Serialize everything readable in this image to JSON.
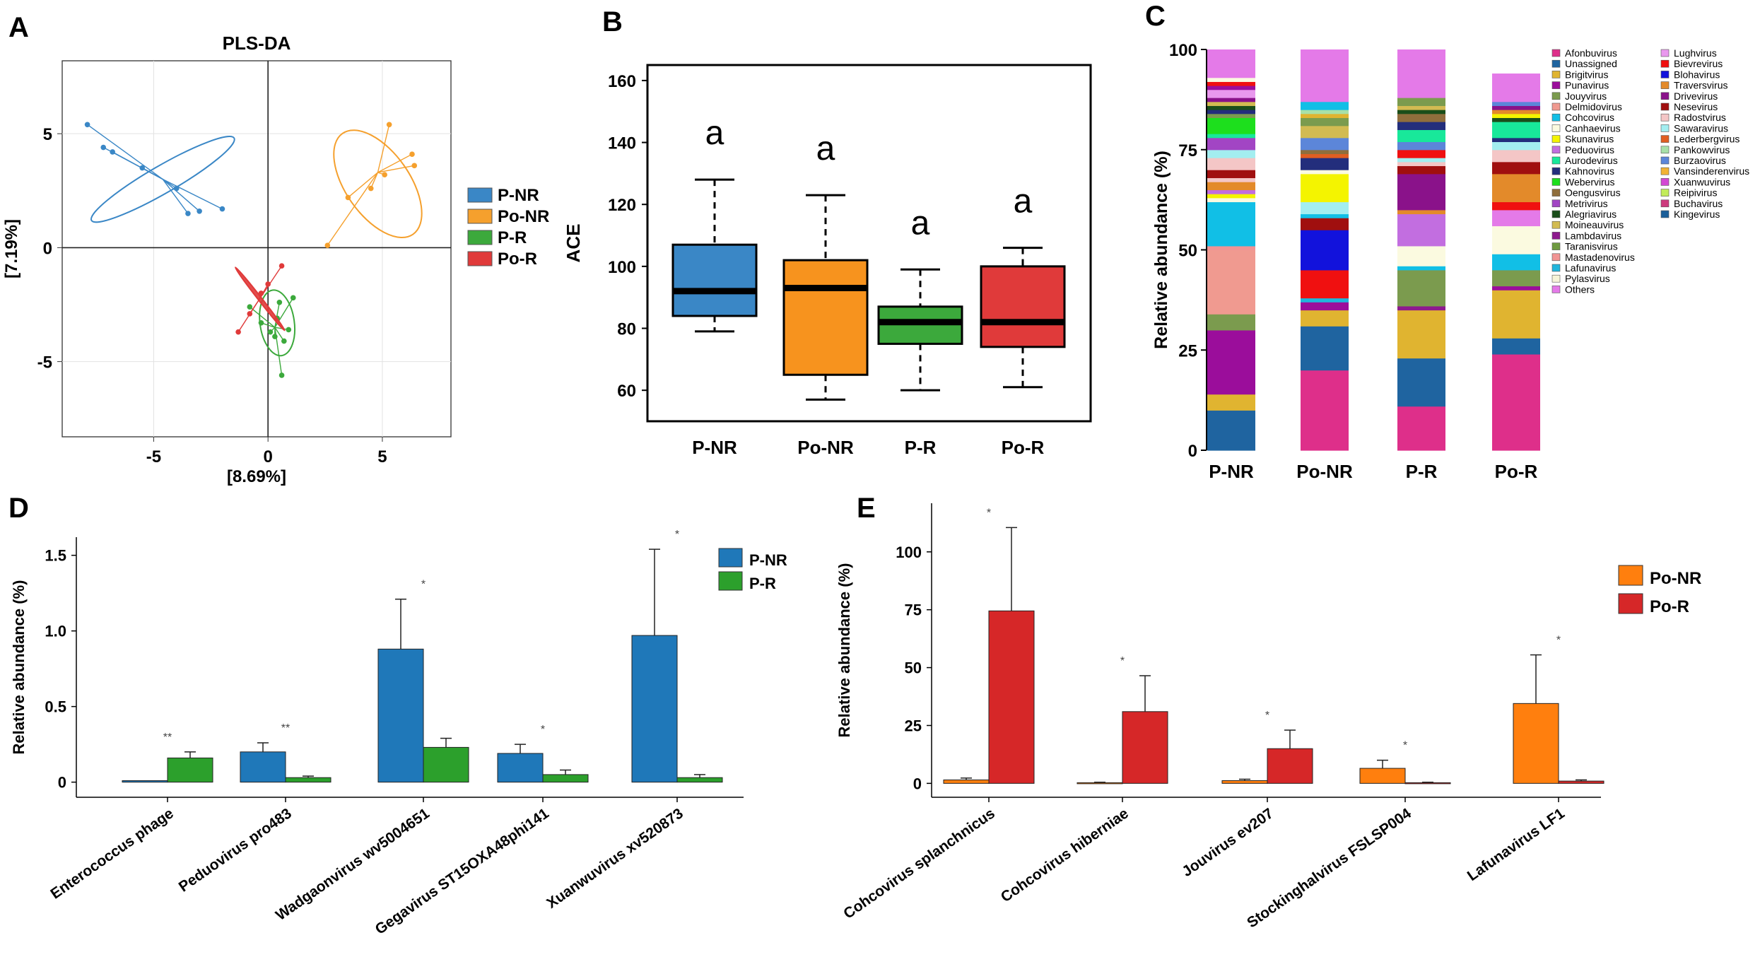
{
  "panel_letters": {
    "A": "A",
    "B": "B",
    "C": "C",
    "D": "D",
    "E": "E"
  },
  "chart_data": [
    {
      "panel": "A",
      "type": "scatter",
      "title": "PLS-DA",
      "xlabel": "[8.69%]",
      "ylabel": "[7.19%]",
      "xlim": [
        -9,
        8
      ],
      "ylim": [
        -8.3,
        8.2
      ],
      "xticks": [
        {
          "value": -5,
          "label": "-5"
        },
        {
          "value": 0,
          "label": "0"
        },
        {
          "value": 5,
          "label": "5"
        }
      ],
      "yticks": [
        {
          "value": -5,
          "label": "-5"
        },
        {
          "value": 0,
          "label": "0"
        },
        {
          "value": 5,
          "label": "5"
        }
      ],
      "legend": [
        "P-NR",
        "Po-NR",
        "P-R",
        "Po-R"
      ],
      "series": [
        {
          "name": "P-NR",
          "color": "#3a87c6",
          "points": [
            [
              -7.9,
              5.4
            ],
            [
              -7.2,
              4.4
            ],
            [
              -6.8,
              4.2
            ],
            [
              -5.5,
              3.5
            ],
            [
              -4,
              2.6
            ],
            [
              -3.5,
              1.5
            ],
            [
              -3,
              1.6
            ],
            [
              -2,
              1.7
            ]
          ],
          "centroid": [
            -4.6,
            3.0
          ],
          "ellipse": {
            "cx": -4.6,
            "cy": 3.0,
            "rx": 3.6,
            "ry": 0.6,
            "angle_deg": -30
          }
        },
        {
          "name": "Po-NR",
          "color": "#f5a02d",
          "points": [
            [
              2.6,
              0.1
            ],
            [
              3.5,
              2.2
            ],
            [
              5.1,
              3.2
            ],
            [
              5.3,
              5.4
            ],
            [
              6.3,
              4.1
            ],
            [
              6.4,
              3.6
            ],
            [
              4.5,
              2.6
            ]
          ],
          "centroid": [
            4.8,
            3.3
          ],
          "ellipse": {
            "cx": 4.8,
            "cy": 2.8,
            "rx": 1.4,
            "ry": 2.7,
            "angle_deg": -35
          }
        },
        {
          "name": "P-R",
          "color": "#3ca93c",
          "points": [
            [
              -0.8,
              -2.6
            ],
            [
              -0.3,
              -3.3
            ],
            [
              0.1,
              -3.7
            ],
            [
              0.4,
              -3.1
            ],
            [
              0.5,
              -2.4
            ],
            [
              0.6,
              -5.6
            ],
            [
              0.9,
              -3.6
            ],
            [
              1.1,
              -2.2
            ],
            [
              0.7,
              -4.1
            ],
            [
              0.3,
              -3.9
            ]
          ],
          "centroid": [
            0.3,
            -3.5
          ],
          "ellipse": {
            "cx": 0.4,
            "cy": -3.3,
            "rx": 0.75,
            "ry": 1.45,
            "angle_deg": -8
          }
        },
        {
          "name": "Po-R",
          "color": "#e03a3a",
          "points": [
            [
              -1.3,
              -3.7
            ],
            [
              -0.8,
              -2.9
            ],
            [
              -0.3,
              -2.0
            ],
            [
              0.0,
              -1.6
            ],
            [
              0.6,
              -0.8
            ]
          ],
          "centroid": [
            -0.4,
            -2.3
          ],
          "ellipse": {
            "cx": -0.35,
            "cy": -2.25,
            "rx": 1.75,
            "ry": 0.07,
            "angle_deg": 52
          }
        }
      ]
    },
    {
      "panel": "B",
      "type": "box",
      "ylabel": "ACE",
      "ylim": [
        50,
        165
      ],
      "yticks": [
        60,
        80,
        100,
        120,
        140,
        160
      ],
      "categories": [
        "P-NR",
        "Po-NR",
        "P-R",
        "Po-R"
      ],
      "significance": [
        "a",
        "a",
        "a",
        "a"
      ],
      "boxes": [
        {
          "name": "P-NR",
          "color": "#3a87c6",
          "whisker_low": 79,
          "q1": 84,
          "median": 92,
          "q3": 107,
          "whisker_high": 128
        },
        {
          "name": "Po-NR",
          "color": "#f7931e",
          "whisker_low": 57,
          "q1": 65,
          "median": 93,
          "q3": 102,
          "whisker_high": 123
        },
        {
          "name": "P-R",
          "color": "#3ca93c",
          "whisker_low": 60,
          "q1": 75,
          "median": 82,
          "q3": 87,
          "whisker_high": 99
        },
        {
          "name": "Po-R",
          "color": "#e03a3a",
          "whisker_low": 61,
          "q1": 74,
          "median": 82,
          "q3": 100,
          "whisker_high": 106
        }
      ]
    },
    {
      "panel": "C",
      "type": "stacked-bar",
      "ylabel": "Relative abundance  (%)",
      "ylim": [
        0,
        100
      ],
      "yticks": [
        0,
        25,
        50,
        75,
        100
      ],
      "categories": [
        "P-NR",
        "Po-NR",
        "P-R",
        "Po-R"
      ],
      "legend": [
        {
          "name": "Afonbuvirus",
          "color": "#de2f8a"
        },
        {
          "name": "Unassigned",
          "color": "#1f64a0"
        },
        {
          "name": "Brigitvirus",
          "color": "#e0b430"
        },
        {
          "name": "Punavirus",
          "color": "#9b0d9b"
        },
        {
          "name": "Jouyvirus",
          "color": "#7b9b4e"
        },
        {
          "name": "Delmidovirus",
          "color": "#f09a90"
        },
        {
          "name": "Cohcovirus",
          "color": "#11bfe6"
        },
        {
          "name": "Canhaevirus",
          "color": "#fbfae0"
        },
        {
          "name": "Skunavirus",
          "color": "#f4f400"
        },
        {
          "name": "Peduovirus",
          "color": "#c26ee0"
        },
        {
          "name": "Aurodevirus",
          "color": "#18e89a"
        },
        {
          "name": "Kahnovirus",
          "color": "#232e7c"
        },
        {
          "name": "Webervirus",
          "color": "#1ddf1d"
        },
        {
          "name": "Oengusvirus",
          "color": "#8f6e3c"
        },
        {
          "name": "Metrivirus",
          "color": "#a245c4"
        },
        {
          "name": "Alegriavirus",
          "color": "#1a4e1a"
        },
        {
          "name": "Moineauvirus",
          "color": "#d2bb52"
        },
        {
          "name": "Lambdavirus",
          "color": "#8e1a8e"
        },
        {
          "name": "Taranisvirus",
          "color": "#6e9a40"
        },
        {
          "name": "Mastadenovirus",
          "color": "#f19494"
        },
        {
          "name": "Lafunavirus",
          "color": "#21b5dc"
        },
        {
          "name": "Pylasvirus",
          "color": "#f6f4d8"
        },
        {
          "name": "Others",
          "color": "#e47ae8"
        },
        {
          "name": "Lughvirus",
          "color": "#e998ee"
        },
        {
          "name": "Bievrevirus",
          "color": "#f01010"
        },
        {
          "name": "Blohavirus",
          "color": "#1212dc"
        },
        {
          "name": "Traversvirus",
          "color": "#e38a2a"
        },
        {
          "name": "Drivevirus",
          "color": "#8a128a"
        },
        {
          "name": "Nesevirus",
          "color": "#a00f0f"
        },
        {
          "name": "Radostvirus",
          "color": "#f4c6c6"
        },
        {
          "name": "Sawaravirus",
          "color": "#a3eef0"
        },
        {
          "name": "Lederbergvirus",
          "color": "#e05e22"
        },
        {
          "name": "Pankowvirus",
          "color": "#a8e0a8"
        },
        {
          "name": "Burzaovirus",
          "color": "#5c86d9"
        },
        {
          "name": "Vansinderenvirus",
          "color": "#f2b234"
        },
        {
          "name": "Xuanwuvirus",
          "color": "#d348d3"
        },
        {
          "name": "Reipivirus",
          "color": "#c2ec5a"
        },
        {
          "name": "Buchavirus",
          "color": "#cd3a7d"
        },
        {
          "name": "Kingevirus",
          "color": "#1b5f99"
        }
      ],
      "series": [
        {
          "category": "P-NR",
          "segments": [
            [
              "Unassigned",
              10
            ],
            [
              "Brigitvirus",
              4
            ],
            [
              "Punavirus",
              16
            ],
            [
              "Jouyvirus",
              4
            ],
            [
              "Delmidovirus",
              16
            ],
            [
              "Mastadenovirus",
              1
            ],
            [
              "Cohcovirus",
              11
            ],
            [
              "Canhaevirus",
              1
            ],
            [
              "Skunavirus",
              1
            ],
            [
              "Peduovirus",
              1
            ],
            [
              "Traversvirus",
              2
            ],
            [
              "Radostvirus",
              1
            ],
            [
              "Nesevirus",
              2
            ],
            [
              "Radostvirus",
              3
            ],
            [
              "Sawaravirus",
              2
            ],
            [
              "Metrivirus",
              3
            ],
            [
              "Aurodevirus",
              1
            ],
            [
              "Webervirus",
              4
            ],
            [
              "Jouyvirus",
              1
            ],
            [
              "Kahnovirus",
              1
            ],
            [
              "Alegriavirus",
              1
            ],
            [
              "Moineauvirus",
              1
            ],
            [
              "Drivevirus",
              1
            ],
            [
              "Lughvirus",
              2
            ],
            [
              "Punavirus",
              1
            ],
            [
              "Bievrevirus",
              1
            ],
            [
              "Canhaevirus",
              1
            ],
            [
              "Others",
              7
            ]
          ]
        },
        {
          "category": "Po-NR",
          "segments": [
            [
              "Afonbuvirus",
              20
            ],
            [
              "Unassigned",
              11
            ],
            [
              "Brigitvirus",
              4
            ],
            [
              "Punavirus",
              2
            ],
            [
              "Lafunavirus",
              1
            ],
            [
              "Bievrevirus",
              7
            ],
            [
              "Blohavirus",
              10
            ],
            [
              "Nesevirus",
              3
            ],
            [
              "Cohcovirus",
              1
            ],
            [
              "Sawaravirus",
              3
            ],
            [
              "Skunavirus",
              7
            ],
            [
              "Canhaevirus",
              1
            ],
            [
              "Kahnovirus",
              3
            ],
            [
              "Lederbergvirus",
              1
            ],
            [
              "Oengusvirus",
              1
            ],
            [
              "Burzaovirus",
              3
            ],
            [
              "Moineauvirus",
              3
            ],
            [
              "Jouyvirus",
              2
            ],
            [
              "Brigitvirus",
              1
            ],
            [
              "Pankowvirus",
              1
            ],
            [
              "Cohcovirus",
              2
            ],
            [
              "Others",
              13
            ]
          ]
        },
        {
          "category": "P-R",
          "segments": [
            [
              "Afonbuvirus",
              11
            ],
            [
              "Unassigned",
              12
            ],
            [
              "Brigitvirus",
              12
            ],
            [
              "Lambdavirus",
              1
            ],
            [
              "Jouyvirus",
              9
            ],
            [
              "Cohcovirus",
              1
            ],
            [
              "Canhaevirus",
              5
            ],
            [
              "Peduovirus",
              8
            ],
            [
              "Traversvirus",
              1
            ],
            [
              "Drivevirus",
              9
            ],
            [
              "Nesevirus",
              2
            ],
            [
              "Radostvirus",
              1
            ],
            [
              "Sawaravirus",
              1
            ],
            [
              "Bievrevirus",
              2
            ],
            [
              "Burzaovirus",
              2
            ],
            [
              "Aurodevirus",
              3
            ],
            [
              "Kahnovirus",
              2
            ],
            [
              "Oengusvirus",
              2
            ],
            [
              "Alegriavirus",
              1
            ],
            [
              "Moineauvirus",
              1
            ],
            [
              "Jouyvirus",
              2
            ],
            [
              "Others",
              12
            ]
          ]
        },
        {
          "category": "Po-R",
          "segments": [
            [
              "Afonbuvirus",
              24
            ],
            [
              "Unassigned",
              4
            ],
            [
              "Brigitvirus",
              12
            ],
            [
              "Punavirus",
              1
            ],
            [
              "Jouyvirus",
              4
            ],
            [
              "Cohcovirus",
              4
            ],
            [
              "Canhaevirus",
              7
            ],
            [
              "Others",
              4
            ],
            [
              "Bievrevirus",
              2
            ],
            [
              "Traversvirus",
              7
            ],
            [
              "Nesevirus",
              3
            ],
            [
              "Radostvirus",
              3
            ],
            [
              "Sawaravirus",
              2
            ],
            [
              "Kahnovirus",
              1
            ],
            [
              "Aurodevirus",
              4
            ],
            [
              "Alegriavirus",
              1
            ],
            [
              "Skunavirus",
              1
            ],
            [
              "Traversvirus",
              1
            ],
            [
              "Drivevirus",
              1
            ],
            [
              "Burzaovirus",
              1
            ],
            [
              "Others",
              7
            ]
          ]
        }
      ]
    },
    {
      "panel": "D",
      "type": "bar",
      "ylabel": "Relative abundance  (%)",
      "ylim": [
        -0.1,
        1.62
      ],
      "yticks": [
        {
          "value": 0,
          "label": "0"
        },
        {
          "value": 0.5,
          "label": "0.5"
        },
        {
          "value": 1.0,
          "label": "1.0"
        },
        {
          "value": 1.5,
          "label": "1.5"
        }
      ],
      "categories": [
        "Enterococcus phage",
        "Peduovirus pro483",
        "Wadgaonvirus wv5004651",
        "Gegavirus ST15OXA48phi141",
        "Xuanwuvirus xv520873"
      ],
      "significance": [
        "**",
        "**",
        "*",
        "*",
        "*"
      ],
      "legend": [
        "P-NR",
        "P-R"
      ],
      "series": [
        {
          "name": "P-NR",
          "color": "#1f78b9",
          "values": [
            0.01,
            0.2,
            0.88,
            0.19,
            0.97
          ],
          "errors": [
            0,
            0.06,
            0.33,
            0.06,
            0.57
          ]
        },
        {
          "name": "P-R",
          "color": "#2ca02c",
          "values": [
            0.16,
            0.03,
            0.23,
            0.05,
            0.03
          ],
          "errors": [
            0.04,
            0.01,
            0.06,
            0.03,
            0.02
          ]
        }
      ]
    },
    {
      "panel": "E",
      "type": "bar",
      "ylabel": "Relative abundance  (%)",
      "ylim": [
        -6,
        121
      ],
      "yticks": [
        0,
        25,
        50,
        75,
        100
      ],
      "categories": [
        "Cohcovirus splanchnicus",
        "Cohcovirus hiberniae",
        "Jouvirus ev207",
        "Stockinghalvirus FSLSP004",
        "Lafunavirus LF1"
      ],
      "significance": [
        "*",
        "*",
        "*",
        "*",
        "*"
      ],
      "legend": [
        "Po-NR",
        "Po-R"
      ],
      "series": [
        {
          "name": "Po-NR",
          "color": "#ff7f0e",
          "values": [
            1.5,
            0.3,
            1.2,
            6.5,
            34.5
          ],
          "errors": [
            0.8,
            0.2,
            0.6,
            3.5,
            21
          ]
        },
        {
          "name": "Po-R",
          "color": "#d62728",
          "values": [
            74.5,
            31,
            15,
            0.3,
            1
          ],
          "errors": [
            36,
            15.5,
            8,
            0.2,
            0.5
          ]
        }
      ]
    }
  ]
}
